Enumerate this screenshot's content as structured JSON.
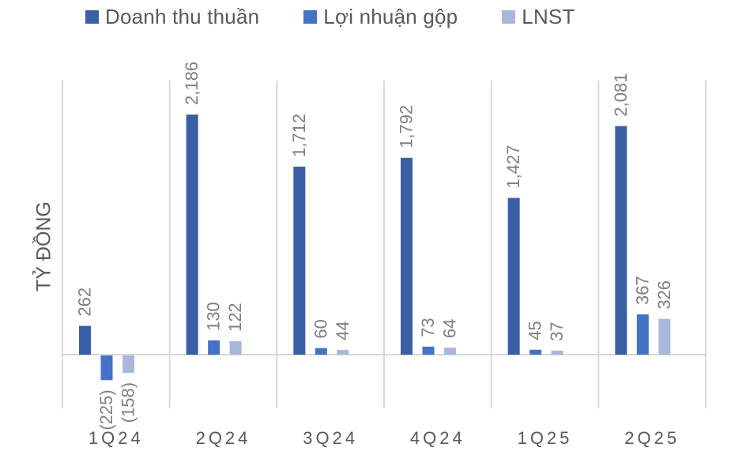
{
  "legend": [
    {
      "label": "Doanh thu thuần",
      "color": "#3A5FA5"
    },
    {
      "label": "Lợi nhuận gộp",
      "color": "#4472C4"
    },
    {
      "label": "LNST",
      "color": "#A9B7DB"
    }
  ],
  "y_axis_label": "TỶ ĐỒNG",
  "chart_data": {
    "type": "bar",
    "title": "",
    "xlabel": "",
    "ylabel": "TỶ ĐỒNG",
    "categories": [
      "1Q24",
      "2Q24",
      "3Q24",
      "4Q24",
      "1Q25",
      "2Q25"
    ],
    "series": [
      {
        "name": "Doanh thu thuần",
        "color": "#3A5FA5",
        "values": [
          262,
          2186,
          1712,
          1792,
          1427,
          2081
        ],
        "labels": [
          "262",
          "2,186",
          "1,712",
          "1,792",
          "1,427",
          "2,081"
        ]
      },
      {
        "name": "Lợi nhuận gộp",
        "color": "#4472C4",
        "values": [
          -225,
          130,
          60,
          73,
          45,
          367
        ],
        "labels": [
          "(225)",
          "130",
          "60",
          "73",
          "45",
          "367"
        ]
      },
      {
        "name": "LNST",
        "color": "#A9B7DB",
        "values": [
          -158,
          122,
          44,
          64,
          37,
          326
        ],
        "labels": [
          "(158)",
          "122",
          "44",
          "64",
          "37",
          "326"
        ]
      }
    ],
    "ylim": [
      -480,
      2500
    ],
    "grid": "vertical category separators",
    "legend_position": "top",
    "data_labels": "rotated 90°, above bars"
  }
}
